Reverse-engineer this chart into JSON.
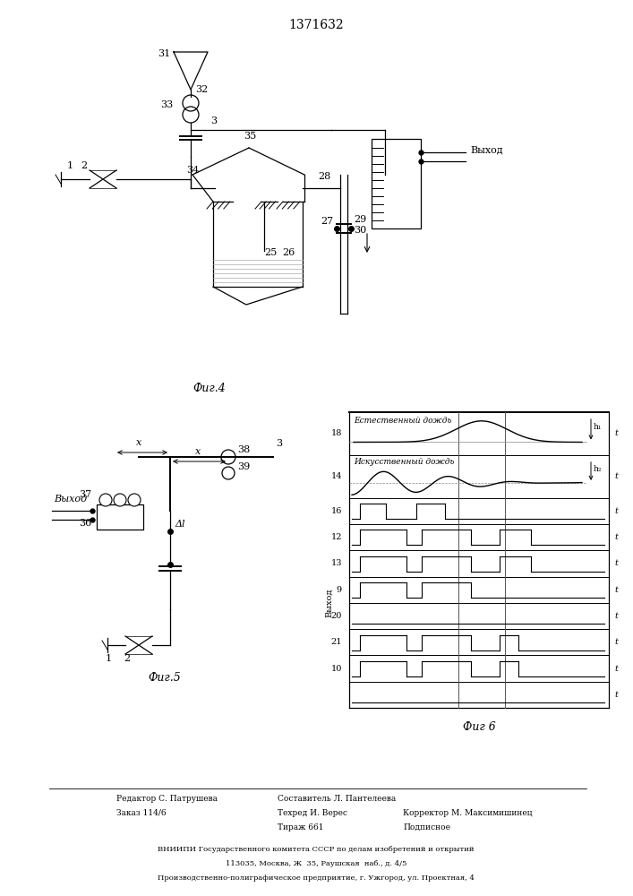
{
  "title": "1371632",
  "bg_color": "#ffffff",
  "fig4_label": "Фиг.4",
  "fig5_label": "Фиг.5",
  "fig6_label": "Фиг 6",
  "footer": {
    "editor": "Редактор С. Патрушева",
    "order": "Заказ 114/6",
    "compiler": "Составитель Л. Пантелеева",
    "tech": "Техред И. Верес",
    "tirazh": "Тираж 661",
    "corrector": "Корректор М. Максимишинец",
    "podpisnoe": "Подписное",
    "vniipii": "ВНИИПИ Государственного комитета СССР по делам изобретений и открытий",
    "address1": "113035, Москва, Ж  35, Раушская  наб., д. 4/5",
    "address2": "Производственно-полиграфическое предприятие, г. Ужгород, ул. Проектная, 4"
  }
}
